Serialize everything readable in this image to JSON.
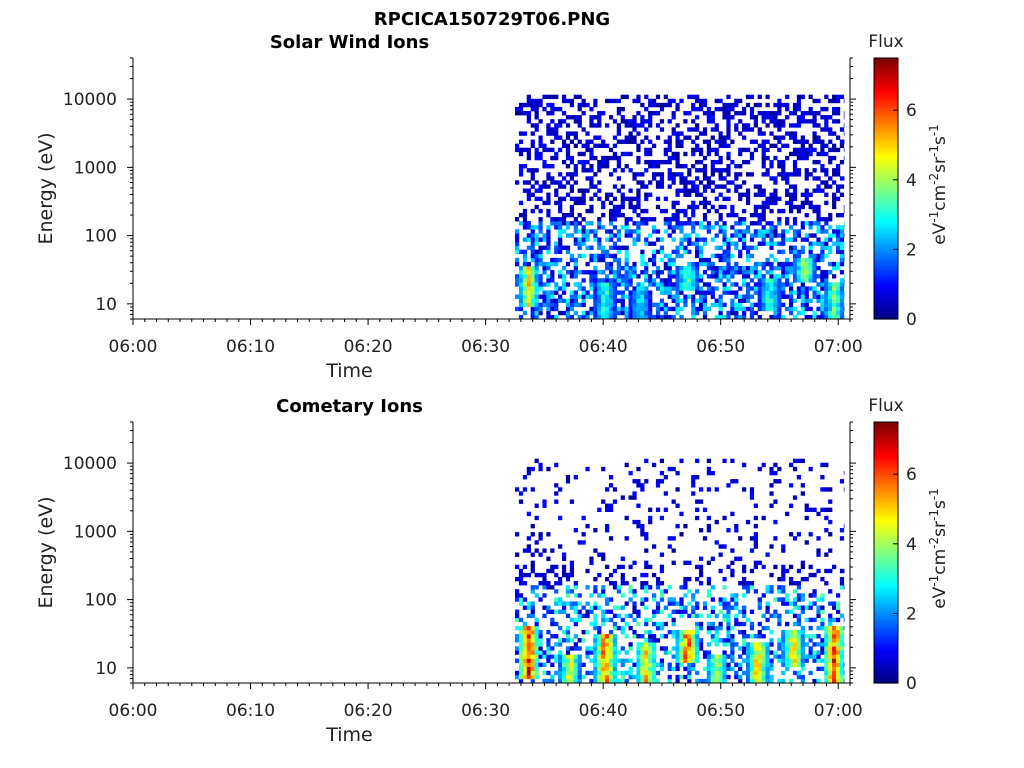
{
  "figure_title": "RPCICA150729T06.PNG",
  "chart_data": [
    {
      "type": "heatmap",
      "title": "Solar Wind Ions",
      "xlabel": "Time",
      "ylabel": "Energy (eV)",
      "x_ticks": [
        "06:00",
        "06:10",
        "06:20",
        "06:30",
        "06:40",
        "06:50",
        "07:00"
      ],
      "x_range": [
        "06:00",
        "07:01"
      ],
      "y_scale": "log",
      "y_ticks": [
        {
          "value": 10,
          "label": "10"
        },
        {
          "value": 100,
          "label": "100"
        },
        {
          "value": 1000,
          "label": "1000"
        },
        {
          "value": 10000,
          "label": "10000"
        }
      ],
      "y_range": [
        6,
        40000
      ],
      "data_start": "06:32:30",
      "data_end": "07:00:30",
      "colorbar": {
        "title": "Flux",
        "unit": "eV-1cm-2sr-1s-1",
        "range": [
          0,
          7.5
        ],
        "ticks": [
          0,
          2,
          4,
          6
        ],
        "colormap": "jet"
      },
      "features": [
        {
          "time": "06:33:30",
          "e_low": 9,
          "e_high": 35,
          "peak": 5.0
        },
        {
          "time": "06:40:00",
          "e_low": 6,
          "e_high": 20,
          "peak": 3.5
        },
        {
          "time": "06:43:00",
          "e_low": 6,
          "e_high": 15,
          "peak": 3.0
        },
        {
          "time": "06:47:00",
          "e_low": 15,
          "e_high": 35,
          "peak": 4.0
        },
        {
          "time": "06:54:00",
          "e_low": 8,
          "e_high": 25,
          "peak": 3.5
        },
        {
          "time": "06:57:00",
          "e_low": 20,
          "e_high": 45,
          "peak": 4.5
        },
        {
          "time": "06:59:30",
          "e_low": 6,
          "e_high": 20,
          "peak": 4.0
        }
      ]
    },
    {
      "type": "heatmap",
      "title": "Cometary Ions",
      "xlabel": "Time",
      "ylabel": "Energy (eV)",
      "x_ticks": [
        "06:00",
        "06:10",
        "06:20",
        "06:30",
        "06:40",
        "06:50",
        "07:00"
      ],
      "x_range": [
        "06:00",
        "07:01"
      ],
      "y_scale": "log",
      "y_ticks": [
        {
          "value": 10,
          "label": "10"
        },
        {
          "value": 100,
          "label": "100"
        },
        {
          "value": 1000,
          "label": "1000"
        },
        {
          "value": 10000,
          "label": "10000"
        }
      ],
      "y_range": [
        6,
        40000
      ],
      "data_start": "06:32:30",
      "data_end": "07:00:30",
      "colorbar": {
        "title": "Flux",
        "unit": "eV-1cm-2sr-1s-1",
        "range": [
          0,
          7.5
        ],
        "ticks": [
          0,
          2,
          4,
          6
        ],
        "colormap": "jet"
      },
      "features": [
        {
          "time": "06:33:30",
          "e_low": 7,
          "e_high": 40,
          "peak": 7.0
        },
        {
          "time": "06:37:00",
          "e_low": 6,
          "e_high": 15,
          "peak": 5.0
        },
        {
          "time": "06:40:00",
          "e_low": 6,
          "e_high": 30,
          "peak": 6.5
        },
        {
          "time": "06:43:30",
          "e_low": 6,
          "e_high": 25,
          "peak": 5.5
        },
        {
          "time": "06:47:00",
          "e_low": 12,
          "e_high": 35,
          "peak": 6.5
        },
        {
          "time": "06:49:30",
          "e_low": 6,
          "e_high": 15,
          "peak": 4.5
        },
        {
          "time": "06:53:00",
          "e_low": 6,
          "e_high": 25,
          "peak": 5.5
        },
        {
          "time": "06:56:00",
          "e_low": 10,
          "e_high": 35,
          "peak": 5.5
        },
        {
          "time": "06:59:30",
          "e_low": 6,
          "e_high": 40,
          "peak": 6.5
        }
      ]
    }
  ]
}
